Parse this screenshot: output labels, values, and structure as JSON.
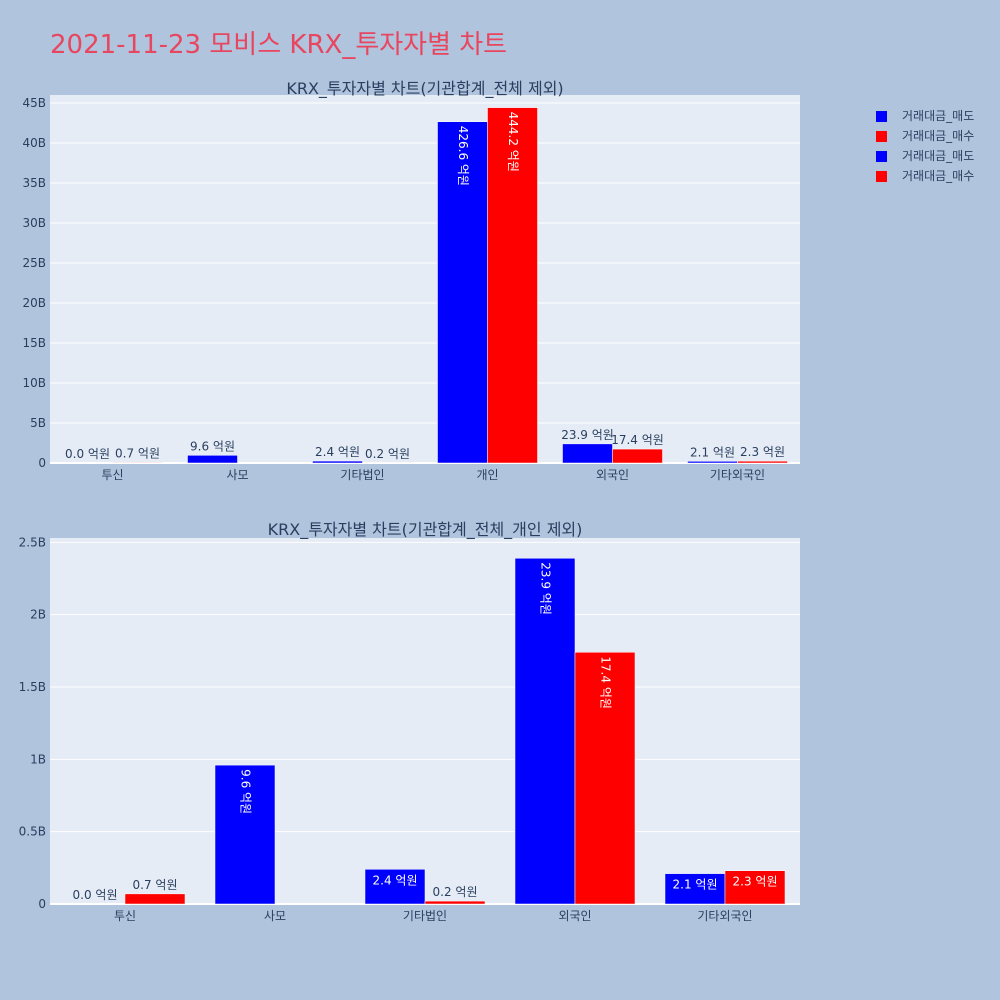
{
  "page": {
    "title": "2021-11-23 모비스 KRX_투자자별 차트"
  },
  "legend": {
    "items": [
      {
        "label": "거래대금_매도",
        "color": "#0000ff"
      },
      {
        "label": "거래대금_매수",
        "color": "#ff0000"
      },
      {
        "label": "거래대금_매도",
        "color": "#0000ff"
      },
      {
        "label": "거래대금_매수",
        "color": "#ff0000"
      }
    ]
  },
  "chart_data": [
    {
      "type": "bar",
      "title": "KRX_투자자별 차트(기관합계_전체 제외)",
      "categories": [
        "투신",
        "사모",
        "기타법인",
        "개인",
        "외국인",
        "기타외국인"
      ],
      "series": [
        {
          "name": "거래대금_매도",
          "color": "#0000ff",
          "values": [
            0,
            960000000,
            240000000,
            42660000000,
            2390000000,
            210000000
          ],
          "labels": [
            "0.0 억원",
            "9.6 억원",
            "2.4 억원",
            "426.6 억원",
            "23.9 억원",
            "2.1 억원"
          ]
        },
        {
          "name": "거래대금_매수",
          "color": "#ff0000",
          "values": [
            70000000,
            0,
            20000000,
            44420000000,
            1740000000,
            230000000
          ],
          "labels": [
            "0.7 억원",
            "",
            "0.2 억원",
            "444.2 억원",
            "17.4 억원",
            "2.3 억원"
          ]
        }
      ],
      "ylim": [
        0,
        46000000000
      ],
      "yticks": [
        0,
        5000000000,
        10000000000,
        15000000000,
        20000000000,
        25000000000,
        30000000000,
        35000000000,
        40000000000,
        45000000000
      ],
      "ytick_labels": [
        "0",
        "5B",
        "10B",
        "15B",
        "20B",
        "25B",
        "30B",
        "35B",
        "40B",
        "45B"
      ],
      "grid": true
    },
    {
      "type": "bar",
      "title": "KRX_투자자별 차트(기관합계_전체_개인 제외)",
      "categories": [
        "투신",
        "사모",
        "기타법인",
        "외국인",
        "기타외국인"
      ],
      "series": [
        {
          "name": "거래대금_매도",
          "color": "#0000ff",
          "values": [
            0,
            960000000,
            240000000,
            2390000000,
            210000000
          ],
          "labels": [
            "0.0 억원",
            "9.6 억원",
            "2.4 억원",
            "23.9 억원",
            "2.1 억원"
          ]
        },
        {
          "name": "거래대금_매수",
          "color": "#ff0000",
          "values": [
            70000000,
            0,
            20000000,
            1740000000,
            230000000
          ],
          "labels": [
            "0.7 억원",
            "",
            "0.2 억원",
            "17.4 억원",
            "2.3 억원"
          ]
        }
      ],
      "ylim": [
        0,
        2530000000
      ],
      "yticks": [
        0,
        500000000,
        1000000000,
        1500000000,
        2000000000,
        2500000000
      ],
      "ytick_labels": [
        "0",
        "0.5B",
        "1B",
        "1.5B",
        "2B",
        "2.5B"
      ],
      "grid": true
    }
  ]
}
